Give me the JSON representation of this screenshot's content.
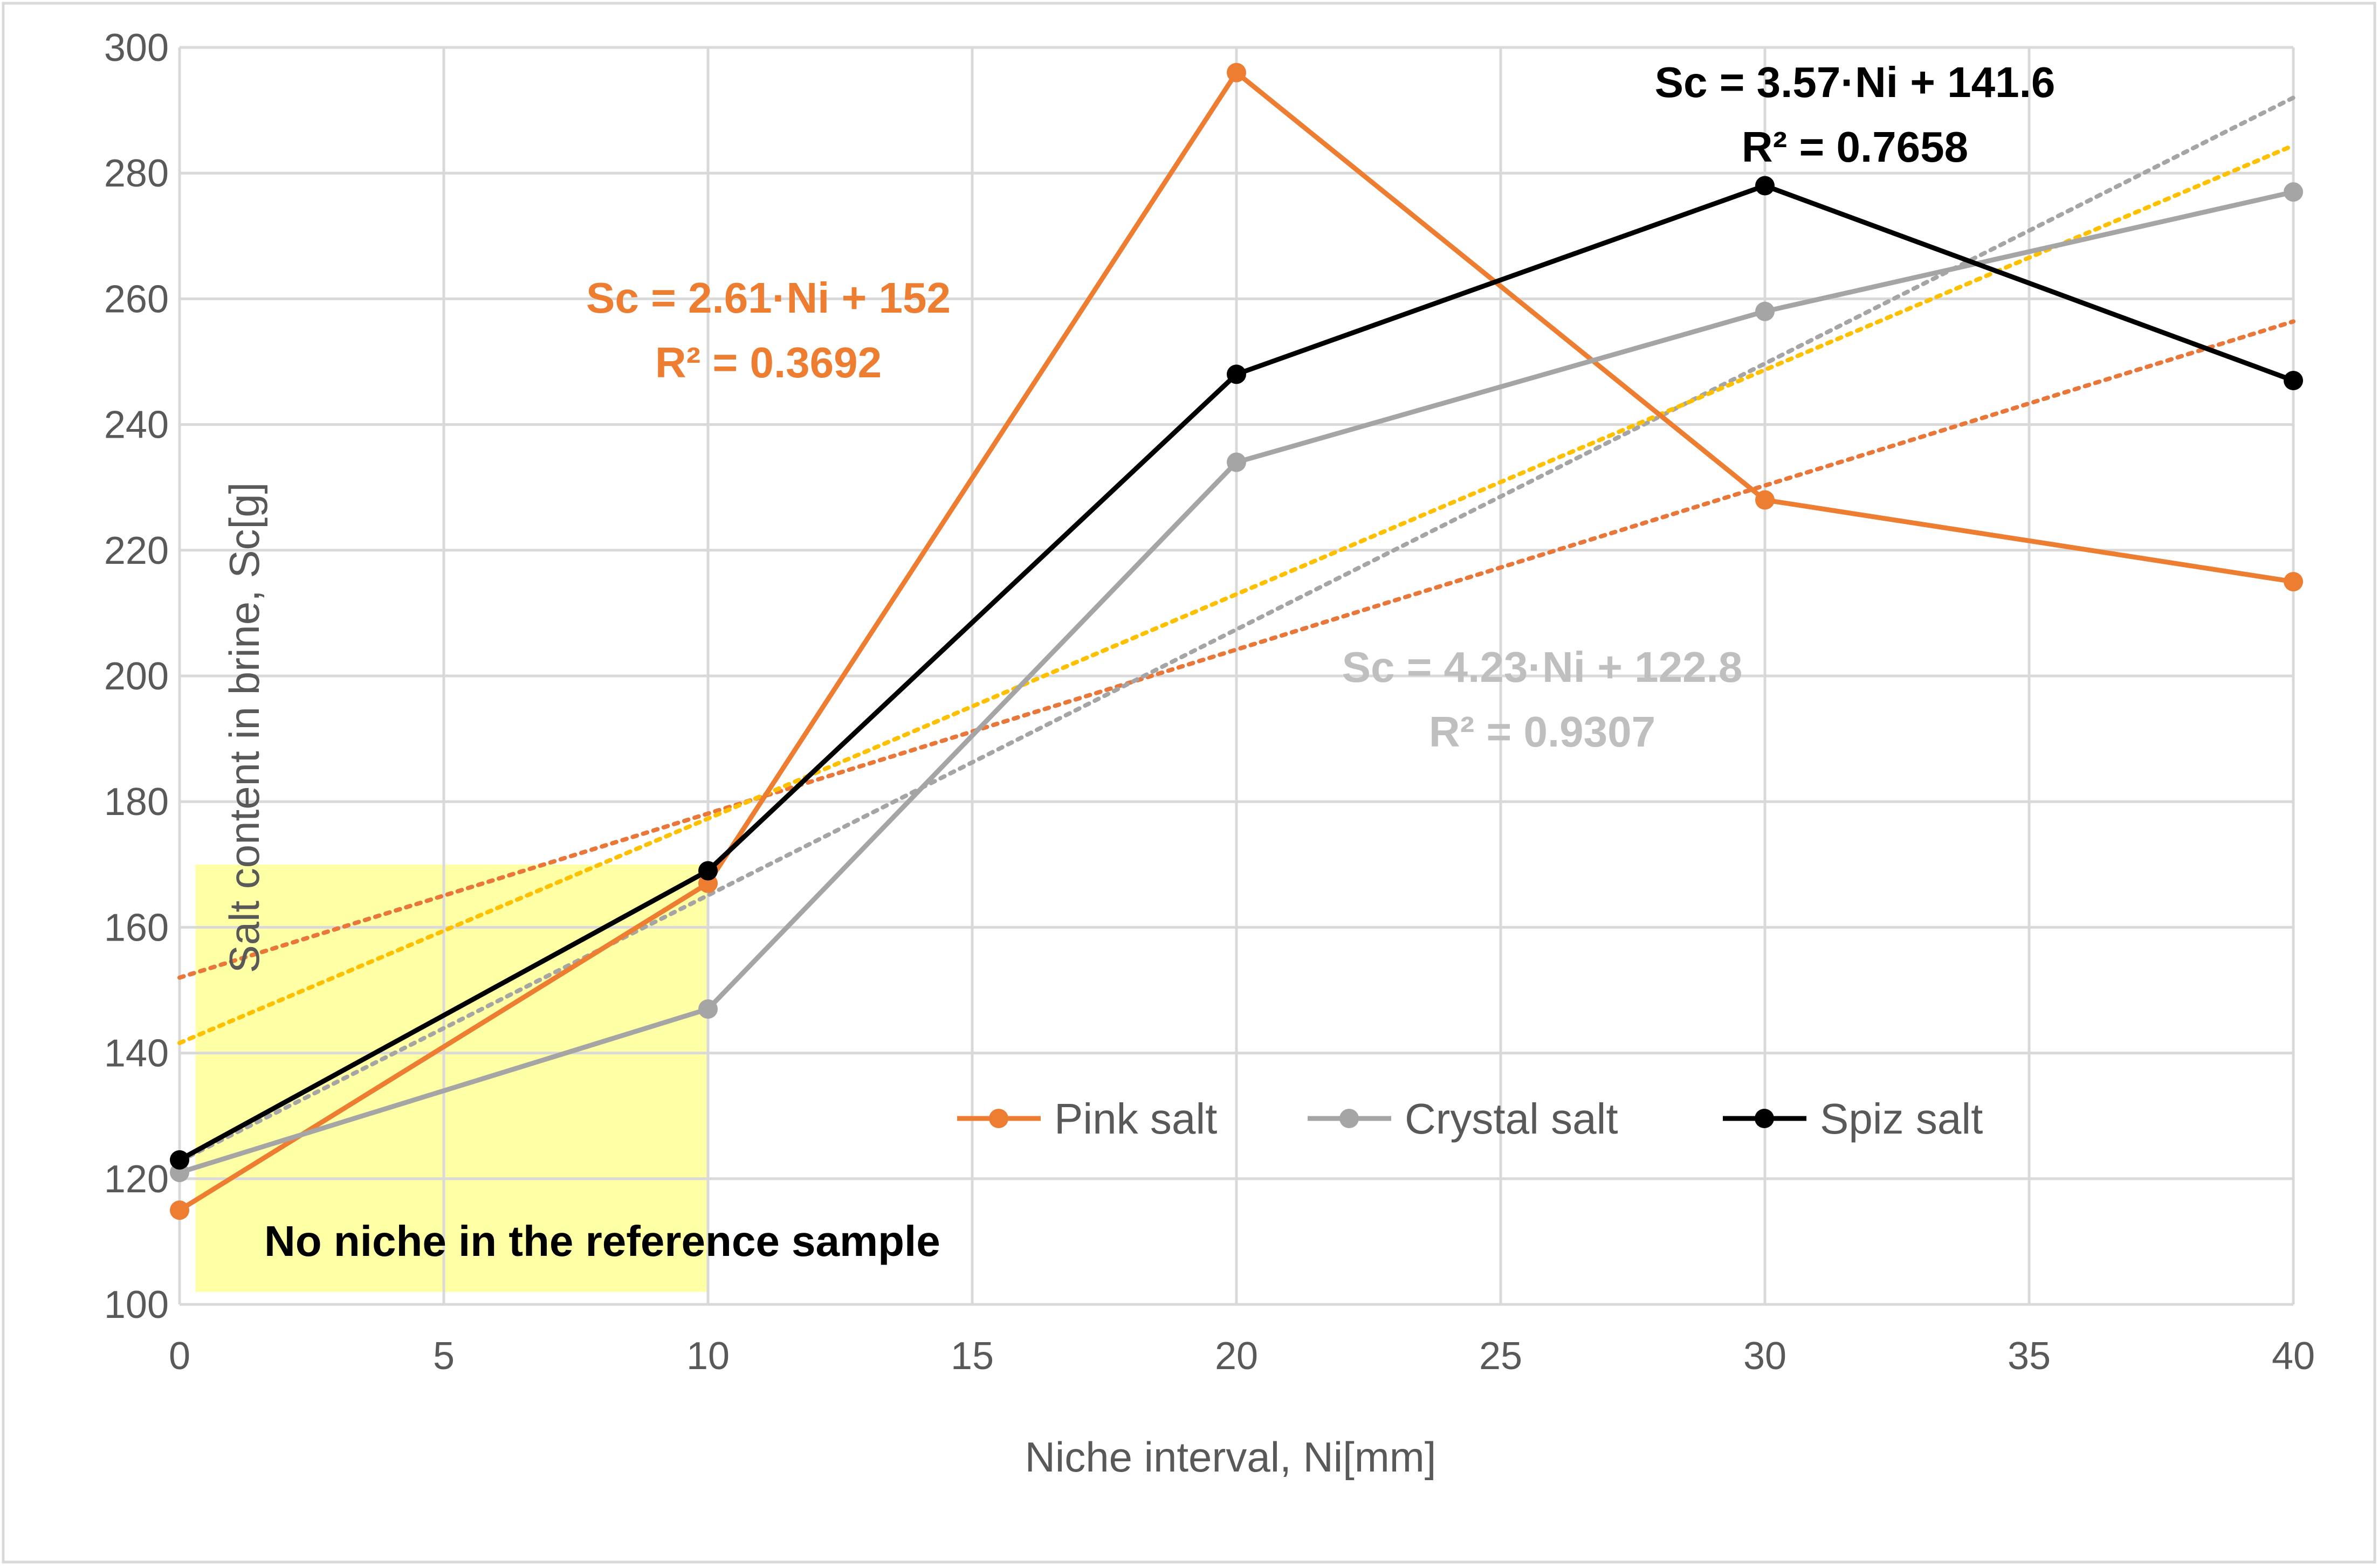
{
  "chart_data": {
    "type": "line",
    "title": "",
    "xlabel": "Niche interval, Ni[mm]",
    "ylabel": "Salt content in brine, Sc[g]",
    "xlim": [
      0,
      40
    ],
    "ylim": [
      100,
      300
    ],
    "x_ticks": [
      "0",
      "5",
      "10",
      "15",
      "20",
      "25",
      "30",
      "35",
      "40"
    ],
    "y_ticks": [
      "100",
      "120",
      "140",
      "160",
      "180",
      "200",
      "220",
      "240",
      "260",
      "280",
      "300"
    ],
    "grid": true,
    "x": [
      0,
      10,
      20,
      30,
      40
    ],
    "series": [
      {
        "name": "Pink salt",
        "values": [
          115,
          167,
          296,
          228,
          215
        ],
        "color": "#ED7D31"
      },
      {
        "name": "Crystal salt",
        "values": [
          121,
          147,
          234,
          258,
          277
        ],
        "color": "#A5A5A5"
      },
      {
        "name": "Spiz salt",
        "values": [
          123,
          169,
          248,
          278,
          247
        ],
        "color": "#000000"
      }
    ],
    "trendlines": [
      {
        "series": "Pink salt",
        "slope": 2.61,
        "intercept": 152,
        "color": "#E9773A",
        "equation": "Sc = 2.61·Ni  + 152",
        "r2": "R² = 0.3692"
      },
      {
        "series": "Crystal salt",
        "slope": 4.23,
        "intercept": 122.8,
        "color": "#A5A5A5",
        "equation": "Sc = 4.23·Ni  + 122.8",
        "r2": "R² = 0.9307"
      },
      {
        "series": "Spiz salt",
        "slope": 3.57,
        "intercept": 141.6,
        "color": "#FFC000",
        "equation": "Sc = 3.57·Ni  + 141.6",
        "r2": "R² = 0.7658"
      }
    ],
    "equation_colors": [
      "#ED7D31",
      "#BFBFBF",
      "#000000"
    ],
    "highlight_region": {
      "x_range": [
        0.3,
        10
      ],
      "y_range": [
        102,
        170
      ],
      "color": "#FFFF88",
      "label": "No niche in the reference sample"
    },
    "legend_position": "lower-right"
  }
}
